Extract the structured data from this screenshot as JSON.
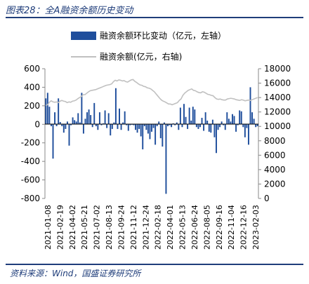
{
  "header": {
    "title": "图表28：全A融资余额历史变动"
  },
  "footer": {
    "source": "资料来源：Wind，国盛证券研究所"
  },
  "chart_data": {
    "type": "bar+line",
    "legend_placement": "top-center",
    "series": [
      {
        "name": "融资余额环比变动（亿元，左轴）",
        "type": "bar",
        "axis": "left",
        "color": "#1f4e9c",
        "values": [
          280,
          340,
          190,
          -20,
          -370,
          130,
          -20,
          280,
          25,
          -20,
          -90,
          -50,
          30,
          -230,
          -10,
          75,
          45,
          30,
          120,
          20,
          340,
          -100,
          60,
          130,
          160,
          100,
          -30,
          230,
          -20,
          -60,
          130,
          -10,
          10,
          150,
          -40,
          120,
          -120,
          -50,
          20,
          390,
          -50,
          170,
          -60,
          20,
          140,
          -10,
          -70,
          -10,
          0,
          -10,
          -60,
          -90,
          -50,
          -130,
          -270,
          -20,
          -60,
          -100,
          -160,
          -80,
          -40,
          -220,
          -20,
          30,
          -150,
          -240,
          20,
          -750,
          -20,
          -10,
          -30,
          10,
          -10,
          20,
          -60,
          180,
          -30,
          220,
          80,
          -50,
          180,
          40,
          190,
          160,
          -30,
          -50,
          -30,
          70,
          -70,
          130,
          40,
          -80,
          -90,
          50,
          -140,
          -310,
          -60,
          -30,
          30,
          -10,
          -60,
          130,
          60,
          30,
          110,
          90,
          -80,
          -10,
          150,
          140,
          -30,
          -140,
          -40,
          -220,
          400,
          130,
          60,
          -30,
          -20
        ]
      },
      {
        "name": "融资余额(亿元，右轴)",
        "type": "line",
        "axis": "right",
        "color": "#c0c0c0",
        "values": [
          12900,
          13000,
          13350,
          13550,
          13400,
          13350,
          13400,
          13300,
          13500,
          13600,
          13500,
          13450,
          13300,
          13400,
          13350,
          13500,
          13550,
          13650,
          13850,
          14000,
          14150,
          14400,
          14400,
          14600,
          14800,
          14950,
          15000,
          15050,
          15100,
          15200,
          15300,
          15400,
          15500,
          15600,
          15700,
          15750,
          15800,
          15900,
          16200,
          16400,
          16300,
          16450,
          16400,
          16300,
          16350,
          16200,
          16150,
          16300,
          16450,
          16500,
          16250,
          16100,
          15900,
          15750,
          15700,
          15550,
          15500,
          15350,
          15300,
          15200,
          15000,
          14800,
          14500,
          14200,
          13900,
          13650,
          13500,
          13400,
          13250,
          13100,
          13100,
          13000,
          13100,
          13200,
          13300,
          13600,
          13800,
          14300,
          14600,
          14800,
          15000,
          15100,
          15200,
          15000,
          14950,
          14800,
          14700,
          14650,
          14800,
          14750,
          14600,
          14450,
          14400,
          14300,
          14250,
          14000,
          13800,
          13750,
          13800,
          13700,
          13650,
          13650,
          13800,
          13850,
          13900,
          13850,
          13800,
          13700,
          13650,
          13600,
          13700,
          13650,
          13550,
          13600,
          13650,
          13600,
          13700,
          13800,
          13900,
          14000
        ]
      }
    ],
    "x_tick_labels": [
      "2021-01-08",
      "2021-02-19",
      "2021-04-02",
      "2021-05-21",
      "2021-07-02",
      "2021-08-13",
      "2021-09-24",
      "2021-11-12",
      "2021-12-24",
      "2022-02-18",
      "2022-04-01",
      "2022-05-13",
      "2022-06-24",
      "2022-08-05",
      "2022-09-16",
      "2022-11-04",
      "2022-12-16",
      "2023-02-03"
    ],
    "y_left": {
      "range": [
        -800,
        600
      ],
      "ticks": [
        "600",
        "400",
        "200",
        "0",
        "-200",
        "-400",
        "-600",
        "-800"
      ]
    },
    "y_right": {
      "range": [
        0,
        18000
      ],
      "ticks": [
        "18000",
        "16000",
        "14000",
        "12000",
        "10000",
        "8000",
        "6000",
        "4000",
        "2000",
        "0"
      ]
    },
    "grid": false
  }
}
